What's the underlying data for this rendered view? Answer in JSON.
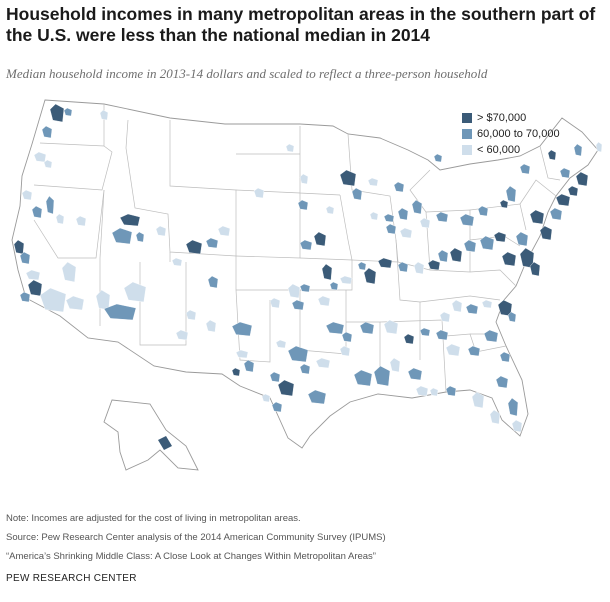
{
  "title": "Household incomes in many metropolitan areas in the southern part of the U.S. were less than the national median in 2014",
  "subtitle": "Median household income in 2013-14 dollars and scaled to reflect a three-person household",
  "legend": [
    {
      "label": "> $70,000",
      "color": "#3b5b78"
    },
    {
      "label": "60,000 to 70,000",
      "color": "#6f97b8"
    },
    {
      "label": "< 60,000",
      "color": "#cfdeeb"
    }
  ],
  "colors": {
    "land": "#ffffff",
    "state_border": "#bdbdbd",
    "outline": "#9a9a9a"
  },
  "notes": {
    "note": "Note: Incomes are adjusted for the cost of living in metropolitan areas.",
    "source": "Source: Pew Research Center analysis of the 2014 American Community Survey (IPUMS)",
    "report": "“America’s Shrinking Middle Class: A Close Look at Changes Within Metropolitan Areas”"
  },
  "org": "PEW RESEARCH CENTER"
}
